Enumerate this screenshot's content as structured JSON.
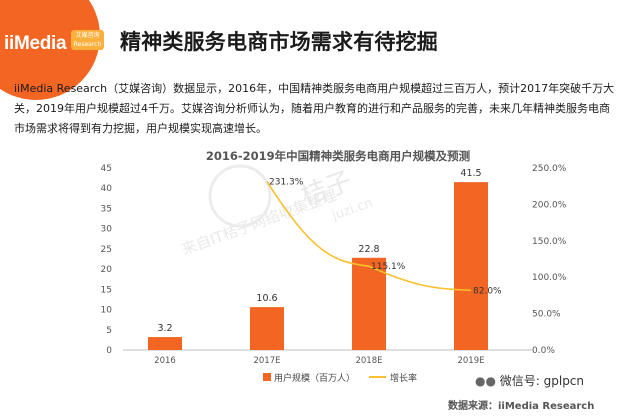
{
  "header": {
    "logo_text": "iiMedia",
    "logo_badge_cn": "艾媒咨询",
    "logo_badge_en": "Research",
    "title": "精神类服务电商市场需求有待挖掘"
  },
  "intro_text": "iiMedia Research（艾媒咨询）数据显示，2016年，中国精神类服务电商用户规模超过三百万人，预计2017年突破千万大关，2019年用户规模超过4千万。艾媒咨询分析师认为，随着用户教育的进行和产品服务的完善，未来几年精神类服务电商市场需求将得到有力挖掘，用户规模实现高速增长。",
  "watermark": {
    "big": "桔子",
    "site": "juzi.cn",
    "line": "来自IT桔子网络收集整理"
  },
  "chart_data": {
    "type": "bar",
    "title": "2016-2019年中国精神类服务电商用户规模及预测",
    "categories": [
      "2016",
      "2017E",
      "2018E",
      "2019E"
    ],
    "series": [
      {
        "name": "用户规模（百万人）",
        "type": "bar",
        "axis": "left",
        "values": [
          3.2,
          10.6,
          22.8,
          41.5
        ],
        "labels": [
          "3.2",
          "10.6",
          "22.8",
          "41.5"
        ]
      },
      {
        "name": "增长率",
        "type": "line",
        "axis": "right",
        "values": [
          null,
          231.3,
          115.1,
          82.0
        ],
        "labels": [
          "",
          "231.3%",
          "115.1%",
          "82.0%"
        ]
      }
    ],
    "y_left": {
      "min": 0,
      "max": 45,
      "step": 5,
      "ticks": [
        "0",
        "5",
        "10",
        "15",
        "20",
        "25",
        "30",
        "35",
        "40",
        "45"
      ]
    },
    "y_right": {
      "min": 0,
      "max": 250,
      "step": 50,
      "ticks": [
        "0.0%",
        "50.0%",
        "100.0%",
        "150.0%",
        "200.0%",
        "250.0%"
      ]
    },
    "colors": {
      "bar": "#f26522",
      "line": "#fbc02d"
    },
    "legend_position": "bottom",
    "grid": false
  },
  "footer": {
    "wechat_label": "微信号: gplpcn",
    "source": "数据来源：iiMedia Research"
  }
}
